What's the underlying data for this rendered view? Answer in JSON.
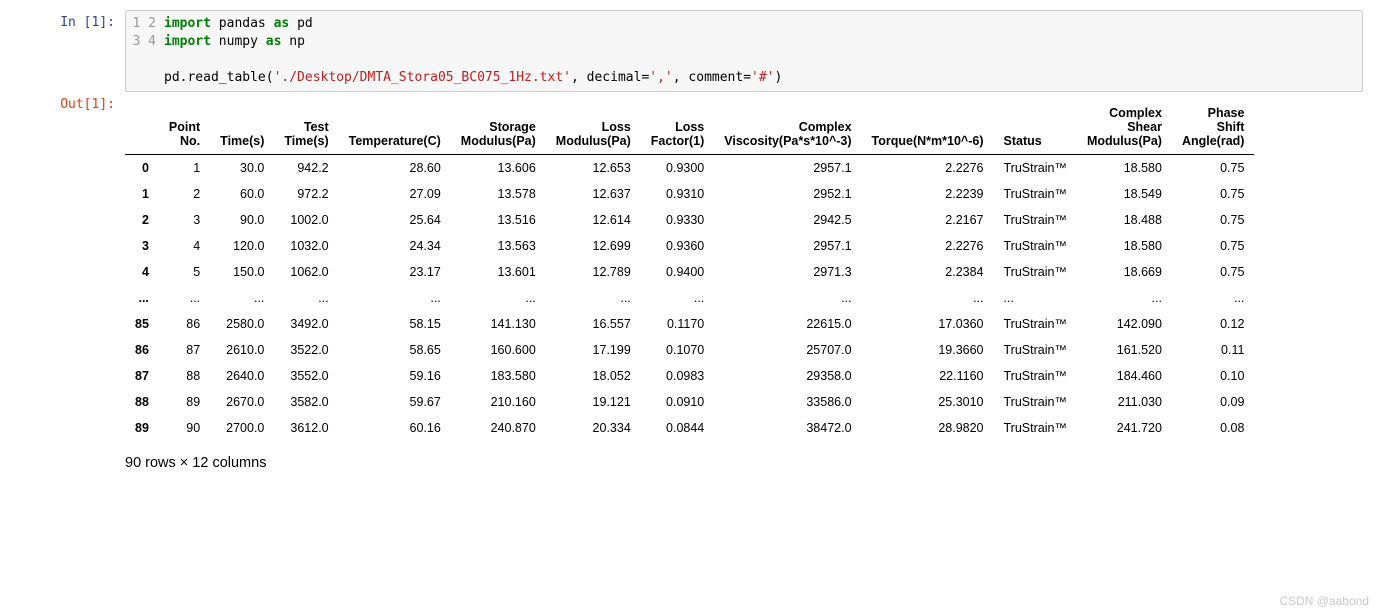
{
  "in_prompt": "In  [1]:",
  "out_prompt": "Out[1]:",
  "gutter": [
    "1",
    "2",
    "3",
    "4"
  ],
  "code": {
    "l1_kw1": "import",
    "l1_t1": " pandas ",
    "l1_kw2": "as",
    "l1_t2": " pd",
    "l2_kw1": "import",
    "l2_t1": " numpy ",
    "l2_kw2": "as",
    "l2_t2": " np",
    "l3": "",
    "l4_t1": "pd.read_table(",
    "l4_s1": "'./Desktop/DMTA_Stora05_BC075_1Hz.txt'",
    "l4_t2": ", decimal=",
    "l4_s2": "','",
    "l4_t3": ", comment=",
    "l4_s3": "'#'",
    "l4_t4": ")"
  },
  "columns": [
    "Point\nNo.",
    "Time(s)",
    "Test\nTime(s)",
    "Temperature(C)",
    "Storage\nModulus(Pa)",
    "Loss\nModulus(Pa)",
    "Loss\nFactor(1)",
    "Complex\nViscosity(Pa*s*10^-3)",
    "Torque(N*m*10^-6)",
    "Status",
    "Complex\nShear\nModulus(Pa)",
    "Phase\nShift\nAngle(rad)"
  ],
  "index": [
    "0",
    "1",
    "2",
    "3",
    "4",
    "...",
    "85",
    "86",
    "87",
    "88",
    "89"
  ],
  "rows": [
    [
      "1",
      "30.0",
      "942.2",
      "28.60",
      "13.606",
      "12.653",
      "0.9300",
      "2957.1",
      "2.2276",
      "TruStrain™",
      "18.580",
      "0.75"
    ],
    [
      "2",
      "60.0",
      "972.2",
      "27.09",
      "13.578",
      "12.637",
      "0.9310",
      "2952.1",
      "2.2239",
      "TruStrain™",
      "18.549",
      "0.75"
    ],
    [
      "3",
      "90.0",
      "1002.0",
      "25.64",
      "13.516",
      "12.614",
      "0.9330",
      "2942.5",
      "2.2167",
      "TruStrain™",
      "18.488",
      "0.75"
    ],
    [
      "4",
      "120.0",
      "1032.0",
      "24.34",
      "13.563",
      "12.699",
      "0.9360",
      "2957.1",
      "2.2276",
      "TruStrain™",
      "18.580",
      "0.75"
    ],
    [
      "5",
      "150.0",
      "1062.0",
      "23.17",
      "13.601",
      "12.789",
      "0.9400",
      "2971.3",
      "2.2384",
      "TruStrain™",
      "18.669",
      "0.75"
    ],
    [
      "...",
      "...",
      "...",
      "...",
      "...",
      "...",
      "...",
      "...",
      "...",
      "...",
      "...",
      "..."
    ],
    [
      "86",
      "2580.0",
      "3492.0",
      "58.15",
      "141.130",
      "16.557",
      "0.1170",
      "22615.0",
      "17.0360",
      "TruStrain™",
      "142.090",
      "0.12"
    ],
    [
      "87",
      "2610.0",
      "3522.0",
      "58.65",
      "160.600",
      "17.199",
      "0.1070",
      "25707.0",
      "19.3660",
      "TruStrain™",
      "161.520",
      "0.11"
    ],
    [
      "88",
      "2640.0",
      "3552.0",
      "59.16",
      "183.580",
      "18.052",
      "0.0983",
      "29358.0",
      "22.1160",
      "TruStrain™",
      "184.460",
      "0.10"
    ],
    [
      "89",
      "2670.0",
      "3582.0",
      "59.67",
      "210.160",
      "19.121",
      "0.0910",
      "33586.0",
      "25.3010",
      "TruStrain™",
      "211.030",
      "0.09"
    ],
    [
      "90",
      "2700.0",
      "3612.0",
      "60.16",
      "240.870",
      "20.334",
      "0.0844",
      "38472.0",
      "28.9820",
      "TruStrain™",
      "241.720",
      "0.08"
    ]
  ],
  "shape_text": "90 rows × 12 columns",
  "watermark": "CSDN @aabond"
}
